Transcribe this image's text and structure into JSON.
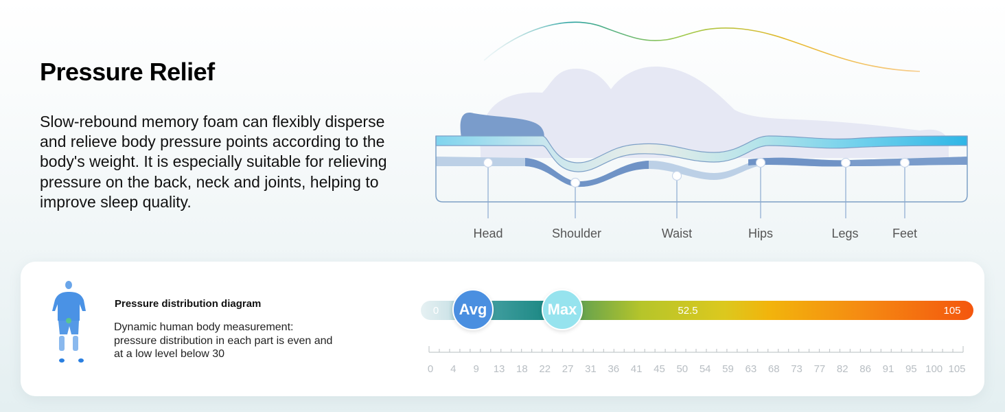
{
  "header": {
    "title": "Pressure Relief",
    "description": "Slow-rebound memory foam can flexibly disperse and relieve body pressure points according to the body's weight. It is especially suitable for relieving pressure on the back, neck and joints, helping to improve sleep quality."
  },
  "body_parts": [
    "Head",
    "Shoulder",
    "Waist",
    "Hips",
    "Legs",
    "Feet"
  ],
  "diagram": {
    "title": "Pressure distribution diagram",
    "text": "Dynamic human body measurement: pressure distribution in each part is even and at a low level below 30"
  },
  "scale": {
    "min_label": "0",
    "mid_label": "52.5",
    "max_label": "105",
    "avg_label": "Avg",
    "max_marker_label": "Max",
    "ticks": [
      "0",
      "4",
      "9",
      "13",
      "18",
      "22",
      "27",
      "31",
      "36",
      "41",
      "45",
      "50",
      "54",
      "59",
      "63",
      "68",
      "73",
      "77",
      "82",
      "86",
      "91",
      "95",
      "100",
      "105"
    ]
  },
  "colors": {
    "pillow": "#7a9ccb",
    "silhouette": "#e6e8f4",
    "mattress_outline": "#7c9fc6",
    "avg_marker": "#4a8fe0",
    "max_marker": "#96e3ee"
  },
  "icons": {
    "body_figure": "pressure-map-body-icon",
    "wave": "pressure-curve-icon"
  }
}
